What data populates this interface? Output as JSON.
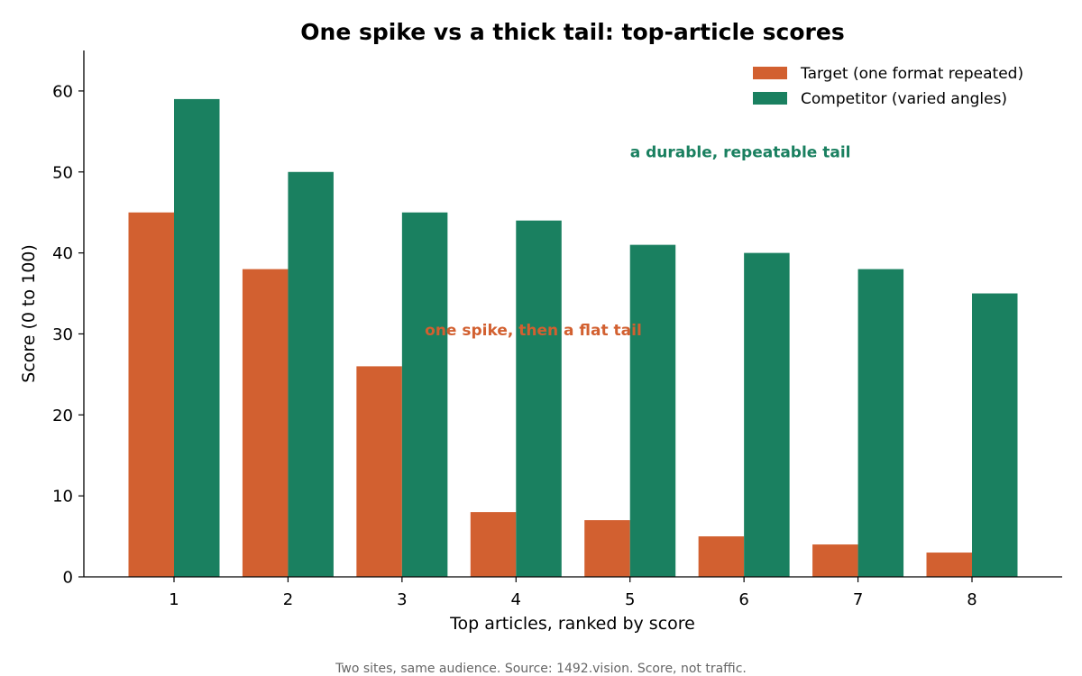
{
  "chart_data": {
    "type": "bar",
    "title": "One spike vs a thick tail: top-article scores",
    "xlabel": "Top articles, ranked by score",
    "ylabel": "Score (0 to 100)",
    "categories": [
      "1",
      "2",
      "3",
      "4",
      "5",
      "6",
      "7",
      "8"
    ],
    "ylim": [
      0,
      65
    ],
    "yticks": [
      0,
      10,
      20,
      30,
      40,
      50,
      60
    ],
    "grid": false,
    "legend_position": "top-right",
    "series": [
      {
        "name": "Target (one format repeated)",
        "color": "#d26030",
        "values": [
          45,
          38,
          26,
          8,
          7,
          5,
          4,
          3
        ]
      },
      {
        "name": "Competitor (varied angles)",
        "color": "#1a8060",
        "values": [
          59,
          50,
          45,
          44,
          41,
          40,
          38,
          35
        ]
      }
    ],
    "annotations": [
      {
        "text": "a durable, repeatable tail",
        "color": "#1a8060",
        "x": 5.0,
        "y": 52.5
      },
      {
        "text": "one spike, then a flat tail",
        "color": "#d26030",
        "x": 3.2,
        "y": 30.5
      }
    ],
    "caption": "Two sites, same audience. Source: 1492.vision. Score, not traffic."
  }
}
